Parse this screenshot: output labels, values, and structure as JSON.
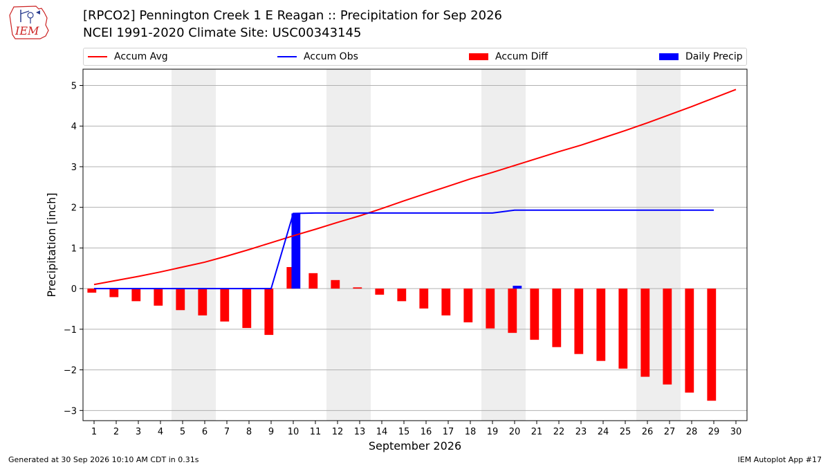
{
  "header": {
    "title_line1": "[RPCO2] Pennington Creek 1 E Reagan :: Precipitation for Sep 2026",
    "title_line2": "NCEI 1991-2020 Climate Site: USC00343145",
    "logo_text": "IEM"
  },
  "legend": {
    "accum_avg": "Accum Avg",
    "accum_obs": "Accum Obs",
    "accum_diff": "Accum Diff",
    "daily_precip": "Daily Precip"
  },
  "colors": {
    "accum_avg": "#ff0000",
    "accum_obs": "#0000ff",
    "accum_diff": "#ff0000",
    "daily_precip": "#0000ff",
    "weekend_band": "#eeeeee",
    "grid": "#b0b0b0"
  },
  "chart_data": {
    "type": "bar",
    "xlabel": "September 2026",
    "ylabel": "Precipitation [inch]",
    "x": [
      1,
      2,
      3,
      4,
      5,
      6,
      7,
      8,
      9,
      10,
      11,
      12,
      13,
      14,
      15,
      16,
      17,
      18,
      19,
      20,
      21,
      22,
      23,
      24,
      25,
      26,
      27,
      28,
      29,
      30
    ],
    "xlim": [
      0.5,
      30.5
    ],
    "ylim": [
      -3.25,
      5.4
    ],
    "yticks": [
      -3,
      -2,
      -1,
      0,
      1,
      2,
      3,
      4,
      5
    ],
    "grid": "horizontal",
    "legend_position": "top",
    "weekend_shading": [
      [
        4.5,
        6.5
      ],
      [
        11.5,
        13.5
      ],
      [
        18.5,
        20.5
      ],
      [
        25.5,
        27.5
      ]
    ],
    "series": [
      {
        "name": "Accum Avg",
        "type": "line",
        "x": [
          1,
          2,
          3,
          4,
          5,
          6,
          7,
          8,
          9,
          10,
          11,
          12,
          13,
          14,
          15,
          16,
          17,
          18,
          19,
          20,
          21,
          22,
          23,
          24,
          25,
          26,
          27,
          28,
          29,
          30
        ],
        "values": [
          0.1,
          0.2,
          0.3,
          0.41,
          0.53,
          0.65,
          0.8,
          0.96,
          1.13,
          1.3,
          1.46,
          1.63,
          1.79,
          1.97,
          2.16,
          2.34,
          2.52,
          2.7,
          2.86,
          3.03,
          3.2,
          3.37,
          3.53,
          3.71,
          3.89,
          4.08,
          4.28,
          4.48,
          4.69,
          4.9
        ]
      },
      {
        "name": "Accum Obs",
        "type": "line",
        "x": [
          1,
          2,
          3,
          4,
          5,
          6,
          7,
          8,
          9,
          10,
          11,
          12,
          13,
          14,
          15,
          16,
          17,
          18,
          19,
          20,
          21,
          22,
          23,
          24,
          25,
          26,
          27,
          28,
          29
        ],
        "values": [
          0,
          0,
          0,
          0,
          0,
          0,
          0,
          0,
          0,
          1.85,
          1.86,
          1.86,
          1.86,
          1.86,
          1.86,
          1.86,
          1.86,
          1.86,
          1.86,
          1.93,
          1.93,
          1.93,
          1.93,
          1.93,
          1.93,
          1.93,
          1.93,
          1.93,
          1.93
        ]
      },
      {
        "name": "Accum Diff",
        "type": "bar",
        "x": [
          1,
          2,
          3,
          4,
          5,
          6,
          7,
          8,
          9,
          10,
          11,
          12,
          13,
          14,
          15,
          16,
          17,
          18,
          19,
          20,
          21,
          22,
          23,
          24,
          25,
          26,
          27,
          28,
          29
        ],
        "values": [
          -0.1,
          -0.21,
          -0.31,
          -0.42,
          -0.53,
          -0.66,
          -0.81,
          -0.97,
          -1.14,
          0.53,
          0.38,
          0.21,
          0.03,
          -0.15,
          -0.31,
          -0.49,
          -0.66,
          -0.83,
          -0.98,
          -1.09,
          -1.26,
          -1.44,
          -1.61,
          -1.78,
          -1.97,
          -2.17,
          -2.36,
          -2.56,
          -2.76
        ]
      },
      {
        "name": "Daily Precip",
        "type": "bar",
        "x": [
          10,
          20
        ],
        "values": [
          1.85,
          0.07
        ]
      }
    ]
  },
  "footer": {
    "generated": "Generated at 30 Sep 2026 10:10 AM CDT in 0.31s",
    "app": "IEM Autoplot App #17"
  }
}
